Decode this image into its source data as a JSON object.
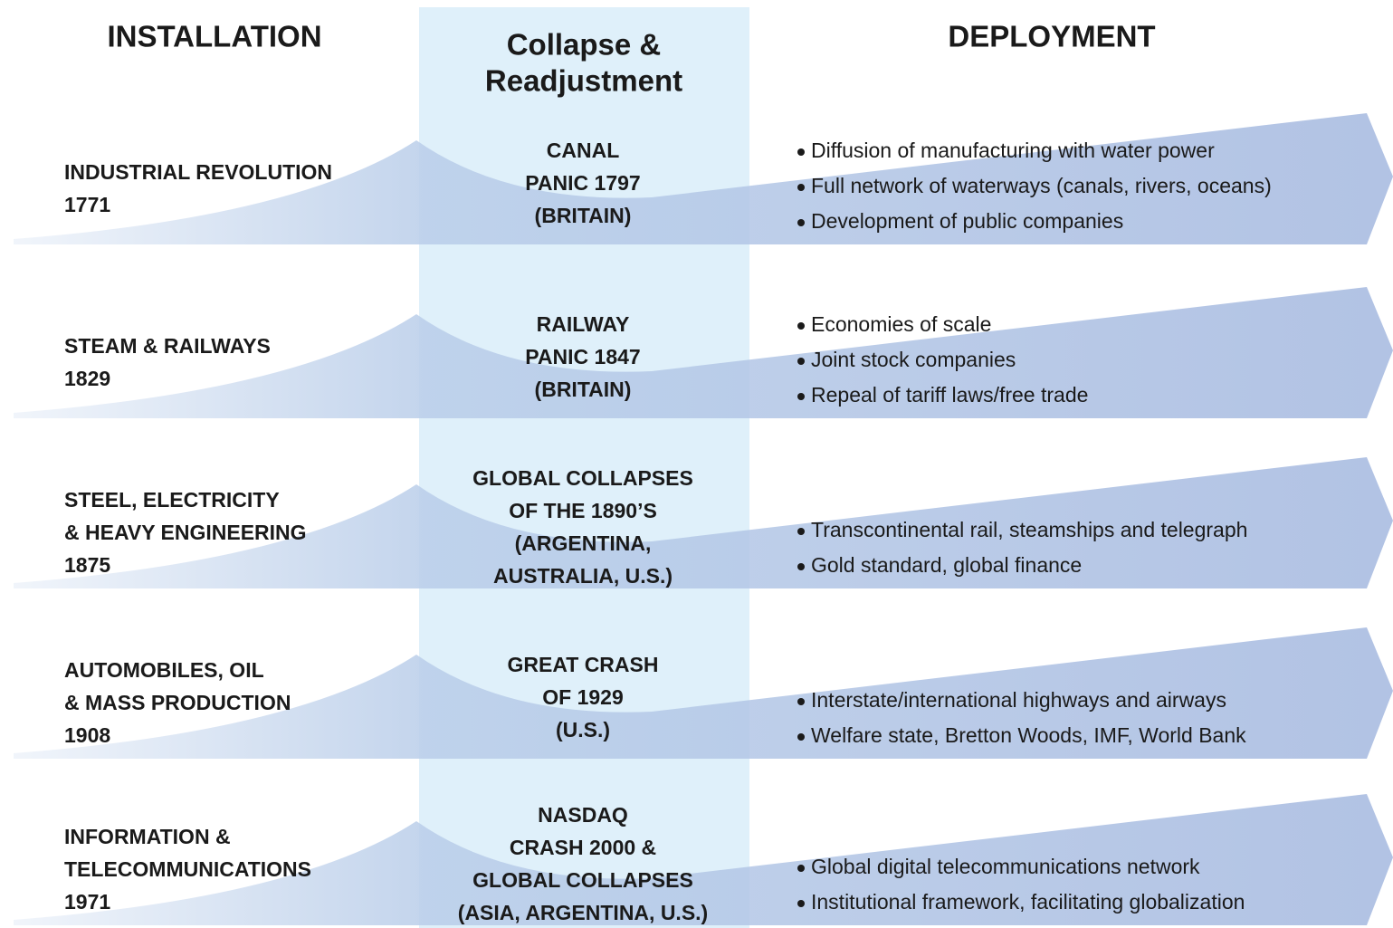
{
  "headers": {
    "installation": "INSTALLATION",
    "collapse": [
      "Collapse &",
      "Readjustment"
    ],
    "deployment": "DEPLOYMENT"
  },
  "rows": [
    {
      "installation": [
        "INDUSTRIAL REVOLUTION",
        "1771"
      ],
      "collapse": [
        "CANAL",
        "PANIC 1797",
        "(BRITAIN)"
      ],
      "deployment": [
        "Diffusion of manufacturing with water power",
        "Full network of waterways (canals, rivers, oceans)",
        "Development of public companies"
      ]
    },
    {
      "installation": [
        "STEAM & RAILWAYS",
        "1829"
      ],
      "collapse": [
        "RAILWAY",
        "PANIC 1847",
        "(BRITAIN)"
      ],
      "deployment": [
        "Economies of scale",
        "Joint stock companies",
        "Repeal of tariff laws/free trade"
      ]
    },
    {
      "installation": [
        "STEEL, ELECTRICITY",
        "& HEAVY ENGINEERING",
        "1875"
      ],
      "collapse": [
        "GLOBAL COLLAPSES",
        "OF THE 1890’S",
        "(ARGENTINA,",
        "AUSTRALIA, U.S.)"
      ],
      "deployment": [
        "Transcontinental rail, steamships and telegraph",
        "Gold standard, global finance"
      ]
    },
    {
      "installation": [
        "AUTOMOBILES, OIL",
        "& MASS PRODUCTION",
        "1908"
      ],
      "collapse": [
        "GREAT CRASH",
        "OF 1929",
        "(U.S.)"
      ],
      "deployment": [
        "Interstate/international highways and airways",
        "Welfare state, Bretton Woods, IMF, World Bank"
      ]
    },
    {
      "installation": [
        "INFORMATION &",
        "TELECOMMUNICATIONS",
        "1971"
      ],
      "collapse": [
        "NASDAQ",
        "CRASH 2000 &",
        "GLOBAL COLLAPSES",
        "(ASIA, ARGENTINA, U.S.)"
      ],
      "deployment": [
        "Global digital telecommunications network",
        "Institutional framework, facilitating globalization"
      ]
    }
  ]
}
